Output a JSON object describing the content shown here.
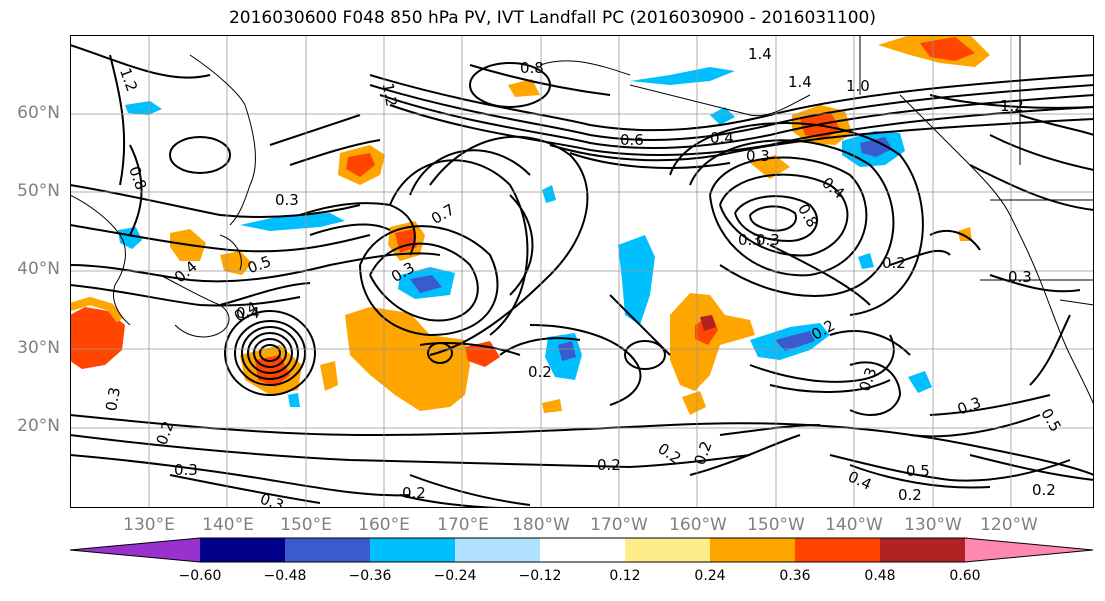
{
  "title": "2016030600 F048 850 hPa PV, IVT Landfall PC (2016030900 - 2016031100)",
  "lat_labels": [
    "60°N",
    "50°N",
    "40°N",
    "30°N",
    "20°N"
  ],
  "lon_labels": [
    "130°E",
    "140°E",
    "150°E",
    "160°E",
    "170°E",
    "180°W",
    "170°W",
    "160°W",
    "150°W",
    "140°W",
    "130°W",
    "120°W"
  ],
  "contour_labels": [
    "1.2",
    "0.8",
    "1.2",
    "1.4",
    "1.4",
    "1.0",
    "1.2",
    "0.8",
    "0.6",
    "0.4",
    "0.3",
    "0.3",
    "0.4",
    "0.8",
    "0.3",
    "0.7",
    "0.3",
    "0.5",
    "0.4",
    "0.4",
    "0.3",
    "0.2",
    "0.2",
    "0.2",
    "0.3",
    "0.3",
    "0.2",
    "0.2",
    "0.2",
    "0.3",
    "0.5",
    "0.4",
    "0.2",
    "0.2",
    "0.3",
    "0.5",
    "0.2",
    "0.4",
    "0.3",
    "0.3",
    "0.2"
  ],
  "colorbar": {
    "ticks": [
      "−0.60",
      "−0.48",
      "−0.36",
      "−0.24",
      "−0.12",
      "0.12",
      "0.24",
      "0.36",
      "0.48",
      "0.60"
    ],
    "colors": [
      "#9932CC",
      "#00008B",
      "#3A5ACD",
      "#00BFFF",
      "#B0E2FF",
      "#FFFFFF",
      "#FFEC8B",
      "#FFA500",
      "#FF4500",
      "#B22222",
      "#FF87B0"
    ]
  },
  "palette": {
    "neg_light": "#B0E2FF",
    "neg_mid": "#00BFFF",
    "neg_strong": "#3A5ACD",
    "pos_light": "#FFEC8B",
    "pos_mid": "#FFA500",
    "pos_strong": "#FF4500",
    "pos_dark": "#B22222"
  }
}
